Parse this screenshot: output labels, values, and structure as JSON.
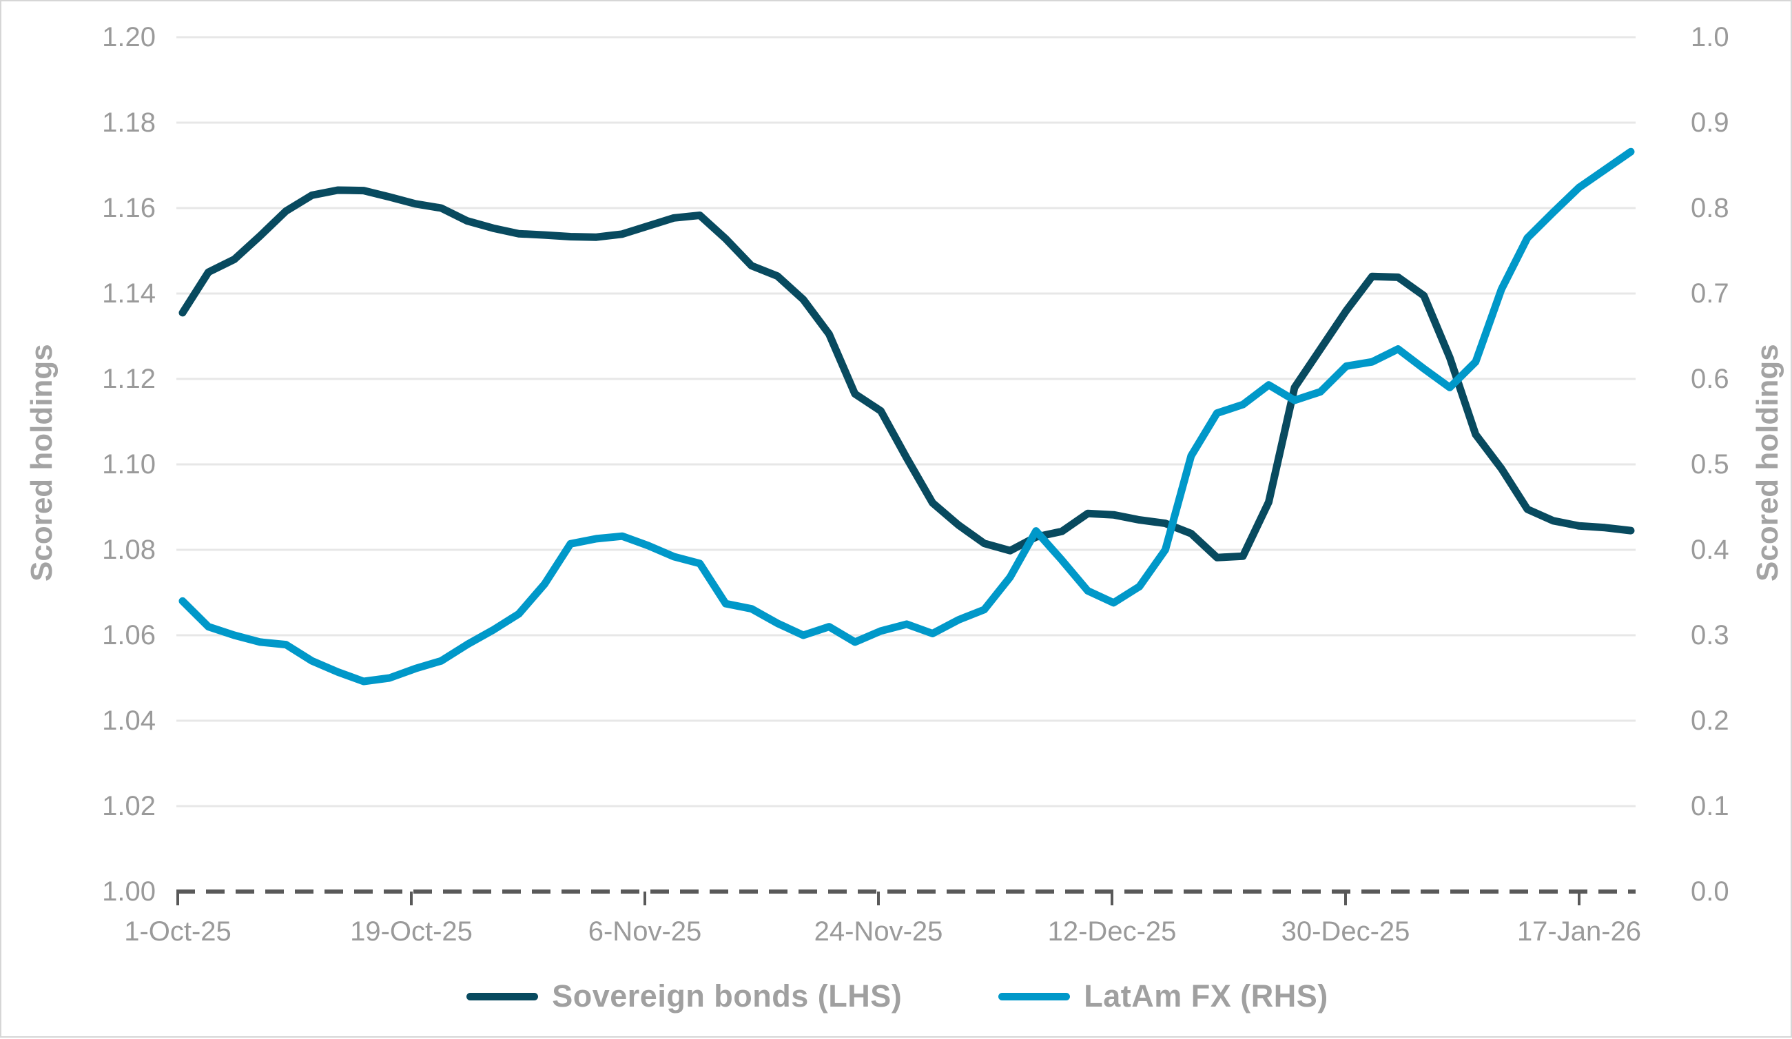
{
  "chart": {
    "legend": [
      {
        "label": "Sovereign bonds (LHS)",
        "color": "#084a5f"
      },
      {
        "label": "LatAm FX (RHS)",
        "color": "#0098c9"
      }
    ],
    "axes": {
      "left": {
        "title": "Scored holdings",
        "tick_labels": [
          "1.00",
          "1.02",
          "1.04",
          "1.06",
          "1.08",
          "1.10",
          "1.12",
          "1.14",
          "1.16",
          "1.18",
          "1.20"
        ]
      },
      "right": {
        "title": "Scored holdings",
        "tick_labels": [
          "0.0",
          "0.1",
          "0.2",
          "0.3",
          "0.4",
          "0.5",
          "0.6",
          "0.7",
          "0.8",
          "0.9",
          "1.0"
        ]
      },
      "x": {
        "tick_labels": [
          "1-Oct-25",
          "19-Oct-25",
          "6-Nov-25",
          "24-Nov-25",
          "12-Dec-25",
          "30-Dec-25",
          "17-Jan-26"
        ]
      }
    },
    "colors": {
      "gridline": "#e7e7e7",
      "axis_line": "#595959",
      "tick_text": "#9a9a9a",
      "legend_text": "#a0a0a0"
    }
  },
  "chart_data": {
    "type": "line",
    "title": "",
    "xlabel": "",
    "left_ylabel": "Scored holdings",
    "right_ylabel": "Scored holdings",
    "left_ylim": [
      1.0,
      1.2
    ],
    "right_ylim": [
      0.0,
      1.0
    ],
    "left_tick_step": 0.02,
    "right_tick_step": 0.1,
    "grid": true,
    "legend_position": "bottom",
    "x_axis_style": "dashed",
    "x": [
      "1-Oct-25",
      "3-Oct-25",
      "5-Oct-25",
      "7-Oct-25",
      "9-Oct-25",
      "11-Oct-25",
      "13-Oct-25",
      "15-Oct-25",
      "17-Oct-25",
      "19-Oct-25",
      "21-Oct-25",
      "23-Oct-25",
      "25-Oct-25",
      "27-Oct-25",
      "29-Oct-25",
      "31-Oct-25",
      "2-Nov-25",
      "4-Nov-25",
      "6-Nov-25",
      "8-Nov-25",
      "10-Nov-25",
      "12-Nov-25",
      "14-Nov-25",
      "16-Nov-25",
      "18-Nov-25",
      "20-Nov-25",
      "22-Nov-25",
      "24-Nov-25",
      "26-Nov-25",
      "28-Nov-25",
      "30-Nov-25",
      "2-Dec-25",
      "4-Dec-25",
      "6-Dec-25",
      "8-Dec-25",
      "10-Dec-25",
      "12-Dec-25",
      "14-Dec-25",
      "16-Dec-25",
      "18-Dec-25",
      "20-Dec-25",
      "22-Dec-25",
      "24-Dec-25",
      "26-Dec-25",
      "28-Dec-25",
      "30-Dec-25",
      "1-Jan-26",
      "3-Jan-26",
      "5-Jan-26",
      "7-Jan-26",
      "9-Jan-26",
      "11-Jan-26",
      "13-Jan-26",
      "15-Jan-26",
      "17-Jan-26",
      "19-Jan-26",
      "21-Jan-26"
    ],
    "x_tick_labels_shown": [
      "1-Oct-25",
      "19-Oct-25",
      "6-Nov-25",
      "24-Nov-25",
      "12-Dec-25",
      "30-Dec-25",
      "17-Jan-26"
    ],
    "series": [
      {
        "name": "Sovereign bonds (LHS)",
        "axis": "left",
        "color": "#084a5f",
        "values": [
          1.1355,
          1.145,
          1.148,
          1.1535,
          1.1593,
          1.163,
          1.1642,
          1.1641,
          1.1626,
          1.161,
          1.16,
          1.157,
          1.1553,
          1.154,
          1.1537,
          1.1533,
          1.1532,
          1.1539,
          1.1558,
          1.1577,
          1.1583,
          1.1528,
          1.1465,
          1.1441,
          1.1386,
          1.1305,
          1.1165,
          1.1125,
          1.1015,
          1.091,
          1.0858,
          1.0815,
          1.0798,
          1.083,
          1.0843,
          1.0885,
          1.0882,
          1.087,
          1.0862,
          1.0838,
          1.0782,
          1.0785,
          1.0912,
          1.118,
          1.127,
          1.136,
          1.144,
          1.1438,
          1.1395,
          1.125,
          1.107,
          1.099,
          1.0895,
          1.0868,
          1.0856,
          1.0852,
          1.0845
        ]
      },
      {
        "name": "LatAm FX (RHS)",
        "axis": "right",
        "color": "#0098c9",
        "values": [
          0.34,
          0.31,
          0.3,
          0.292,
          0.289,
          0.27,
          0.257,
          0.246,
          0.25,
          0.261,
          0.27,
          0.289,
          0.306,
          0.325,
          0.36,
          0.407,
          0.413,
          0.416,
          0.405,
          0.392,
          0.384,
          0.337,
          0.331,
          0.314,
          0.3,
          0.31,
          0.292,
          0.305,
          0.313,
          0.302,
          0.318,
          0.33,
          0.368,
          0.422,
          0.388,
          0.352,
          0.338,
          0.357,
          0.4,
          0.51,
          0.56,
          0.57,
          0.593,
          0.575,
          0.585,
          0.615,
          0.62,
          0.635,
          0.612,
          0.59,
          0.62,
          0.705,
          0.765,
          0.795,
          0.824,
          0.845,
          0.866
        ]
      }
    ]
  }
}
